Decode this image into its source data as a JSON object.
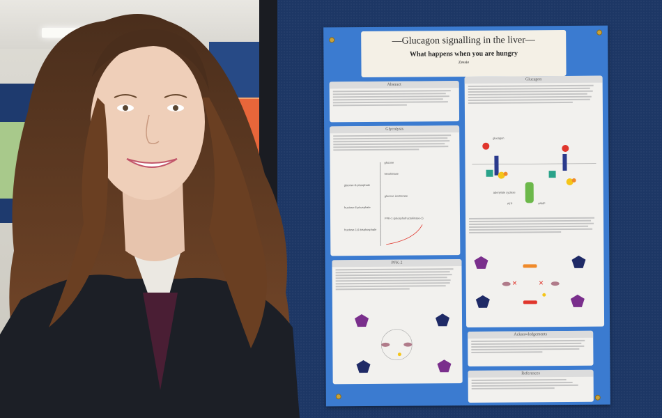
{
  "poster": {
    "title": "Glucagon signalling in the liver",
    "subtitle": "What happens when you are hungry",
    "author": "Zessie",
    "sections": {
      "abstract": "Abstract",
      "glucagon": "Glucagon",
      "glycolysis": "Glycolysis",
      "pfk2": "PFK-2",
      "acknowledgements": "Acknowledgements",
      "references": "References"
    },
    "pathway_labels": [
      "glucose",
      "hexokinase",
      "glucose-6-phosphate",
      "glucose isomerase",
      "fructose-6-phosphate",
      "PFK-1 (phosphofructokinase-1)",
      "fructose-1,6-bisphosphate"
    ],
    "diagram_labels": {
      "glucagon": "glucagon",
      "adenylate_cyclase": "adenylate cyclase",
      "camp": "cAMP",
      "atp": "ATP"
    }
  },
  "colors": {
    "board": "#1d3765",
    "poster_bg": "#3b7bd0",
    "section_bg": "#f2f1ee",
    "purple": "#7a2f8c",
    "navy": "#1f2a66",
    "red": "#e0362c",
    "orange": "#f08a2a",
    "green": "#6cb84a",
    "teal": "#2aa38a"
  }
}
